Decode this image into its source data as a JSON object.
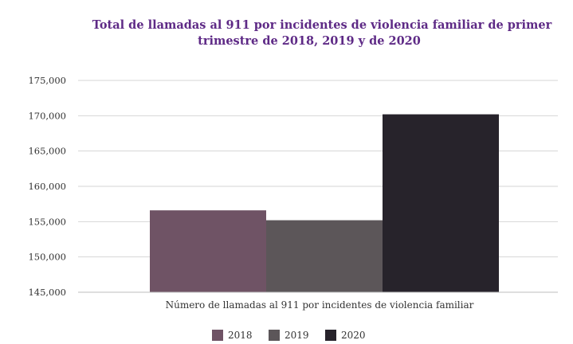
{
  "chart_data": {
    "type": "bar",
    "title_lines": [
      "Total de llamadas al 911 por incidentes de violencia familiar de primer",
      "trimestre de 2018, 2019 y de 2020"
    ],
    "categories": [
      "Número de llamadas al 911 por incidentes de violencia familiar"
    ],
    "series": [
      {
        "name": "2018",
        "values": [
          156600
        ],
        "color": "#6f5365"
      },
      {
        "name": "2019",
        "values": [
          155200
        ],
        "color": "#5c5659"
      },
      {
        "name": "2020",
        "values": [
          170200
        ],
        "color": "#27232b"
      }
    ],
    "ylim": [
      145000,
      175000
    ],
    "yticks": [
      {
        "value": 145000,
        "label": "145,000"
      },
      {
        "value": 150000,
        "label": "150,000"
      },
      {
        "value": 155000,
        "label": "155,000"
      },
      {
        "value": 160000,
        "label": "160,000"
      },
      {
        "value": 165000,
        "label": "165,000"
      },
      {
        "value": 170000,
        "label": "170,000"
      },
      {
        "value": 175000,
        "label": "175,000"
      }
    ],
    "grid": true,
    "legend_position": "bottom"
  }
}
